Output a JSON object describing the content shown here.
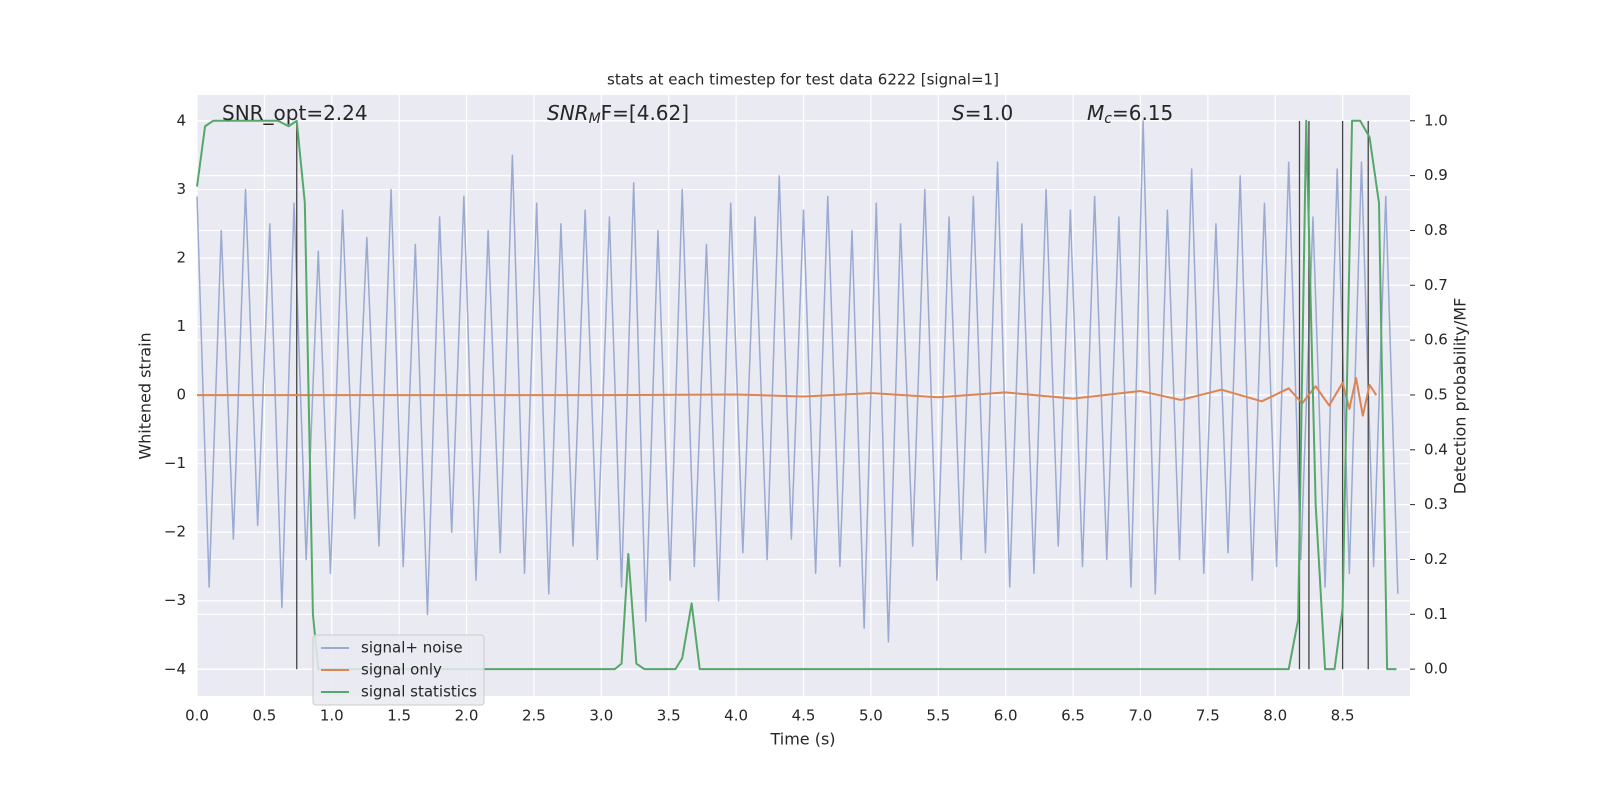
{
  "chart_data": {
    "type": "line",
    "title": "stats at each timestep for test data 6222 [signal=1]",
    "xlabel": "Time (s)",
    "ylabel": "Whitened strain",
    "y2label": "Detection probability/MF",
    "annotations": [
      {
        "text": "SNR_opt=2.24"
      },
      {
        "base": "SNR",
        "sub": "M",
        "tail": "F=[4.62]"
      },
      {
        "base": "S",
        "tail": "=1.0"
      },
      {
        "base": "M",
        "sub": "c",
        "tail": "=6.15"
      }
    ],
    "xlim": [
      0,
      9.0
    ],
    "ylim": [
      -4.39,
      4.38
    ],
    "y2lim": [
      -0.049,
      1.047
    ],
    "xticks": [
      {
        "value": 0,
        "label": "0.0"
      },
      {
        "value": 0.5,
        "label": "0.5"
      },
      {
        "value": 1,
        "label": "1.0"
      },
      {
        "value": 1.5,
        "label": "1.5"
      },
      {
        "value": 2,
        "label": "2.0"
      },
      {
        "value": 2.5,
        "label": "2.5"
      },
      {
        "value": 3,
        "label": "3.0"
      },
      {
        "value": 3.5,
        "label": "3.5"
      },
      {
        "value": 4,
        "label": "4.0"
      },
      {
        "value": 4.5,
        "label": "4.5"
      },
      {
        "value": 5,
        "label": "5.0"
      },
      {
        "value": 5.5,
        "label": "5.5"
      },
      {
        "value": 6,
        "label": "6.0"
      },
      {
        "value": 6.5,
        "label": "6.5"
      },
      {
        "value": 7,
        "label": "7.0"
      },
      {
        "value": 7.5,
        "label": "7.5"
      },
      {
        "value": 8,
        "label": "8.0"
      },
      {
        "value": 8.5,
        "label": "8.5"
      }
    ],
    "yticks": [
      {
        "value": -4,
        "label": "−4"
      },
      {
        "value": -3,
        "label": "−3"
      },
      {
        "value": -2,
        "label": "−2"
      },
      {
        "value": -1,
        "label": "−1"
      },
      0,
      1,
      2,
      3,
      4
    ],
    "y2ticks": [
      {
        "value": 0,
        "label": "0.0"
      },
      {
        "value": 0.1,
        "label": "0.1"
      },
      {
        "value": 0.2,
        "label": "0.2"
      },
      {
        "value": 0.3,
        "label": "0.3"
      },
      {
        "value": 0.4,
        "label": "0.4"
      },
      {
        "value": 0.5,
        "label": "0.5"
      },
      {
        "value": 0.6,
        "label": "0.6"
      },
      {
        "value": 0.7,
        "label": "0.7"
      },
      {
        "value": 0.8,
        "label": "0.8"
      },
      {
        "value": 0.9,
        "label": "0.9"
      },
      {
        "value": 1,
        "label": "1.0"
      }
    ],
    "grid": true,
    "legend": "lower left",
    "series": [
      {
        "name": "signal+ noise",
        "color": "#9aaad0",
        "x": [
          0,
          0.09,
          0.18,
          0.27,
          0.36,
          0.45,
          0.54,
          0.63,
          0.72,
          0.81,
          0.9,
          0.99,
          1.08,
          1.17,
          1.26,
          1.35,
          1.44,
          1.53,
          1.62,
          1.71,
          1.8,
          1.89,
          1.98,
          2.07,
          2.16,
          2.25,
          2.34,
          2.43,
          2.52,
          2.61,
          2.7,
          2.79,
          2.88,
          2.97,
          3.06,
          3.15,
          3.24,
          3.33,
          3.42,
          3.51,
          3.6,
          3.69,
          3.78,
          3.87,
          3.96,
          4.05,
          4.14,
          4.23,
          4.32,
          4.41,
          4.5,
          4.59,
          4.68,
          4.77,
          4.86,
          4.95,
          5.04,
          5.13,
          5.22,
          5.31,
          5.4,
          5.49,
          5.58,
          5.67,
          5.76,
          5.85,
          5.94,
          6.03,
          6.12,
          6.21,
          6.3,
          6.39,
          6.48,
          6.57,
          6.66,
          6.75,
          6.84,
          6.93,
          7.02,
          7.11,
          7.2,
          7.29,
          7.38,
          7.47,
          7.56,
          7.65,
          7.74,
          7.83,
          7.92,
          8.01,
          8.1,
          8.19,
          8.28,
          8.37,
          8.46,
          8.55,
          8.64,
          8.73,
          8.82,
          8.91
        ],
        "values": [
          2.9,
          -2.8,
          2.4,
          -2.1,
          3.0,
          -1.9,
          2.5,
          -3.1,
          2.8,
          -2.4,
          2.1,
          -2.6,
          2.7,
          -1.8,
          2.3,
          -2.2,
          3.0,
          -2.5,
          2.2,
          -3.2,
          2.6,
          -2.0,
          2.9,
          -2.7,
          2.4,
          -2.3,
          3.5,
          -2.6,
          2.8,
          -2.9,
          2.5,
          -2.2,
          2.7,
          -2.4,
          2.6,
          -2.8,
          3.1,
          -3.3,
          2.4,
          -2.7,
          3.0,
          -2.5,
          2.2,
          -3.0,
          2.8,
          -2.3,
          2.6,
          -2.4,
          3.2,
          -2.1,
          2.7,
          -2.6,
          2.9,
          -2.5,
          2.4,
          -3.4,
          2.8,
          -3.6,
          2.5,
          -2.2,
          3.0,
          -2.7,
          2.6,
          -2.4,
          2.9,
          -2.3,
          3.4,
          -2.8,
          2.5,
          -2.6,
          3.0,
          -2.2,
          2.7,
          -2.5,
          2.9,
          -2.4,
          2.6,
          -2.8,
          4.0,
          -2.9,
          2.7,
          -2.4,
          3.3,
          -2.6,
          2.5,
          -2.3,
          3.2,
          -2.7,
          2.8,
          -2.5,
          3.4,
          -2.4,
          2.6,
          -2.8,
          3.3,
          -2.6,
          3.4,
          -2.5,
          2.9,
          -2.9
        ]
      },
      {
        "name": "signal only",
        "color": "#dd8452",
        "x": [
          0,
          1,
          2,
          3,
          4,
          4.5,
          5,
          5.5,
          6,
          6.5,
          7,
          7.3,
          7.6,
          7.9,
          8.1,
          8.2,
          8.3,
          8.4,
          8.5,
          8.55,
          8.6,
          8.65,
          8.7,
          8.75
        ],
        "values": [
          0,
          0,
          0,
          0,
          0.01,
          -0.02,
          0.03,
          -0.03,
          0.04,
          -0.05,
          0.06,
          -0.07,
          0.08,
          -0.09,
          0.1,
          -0.12,
          0.13,
          -0.15,
          0.18,
          -0.2,
          0.25,
          -0.3,
          0.15,
          0
        ]
      },
      {
        "name": "signal statistics",
        "color": "#55a868",
        "axis": "y2",
        "x": [
          0,
          0.06,
          0.12,
          0.2,
          0.3,
          0.45,
          0.6,
          0.68,
          0.74,
          0.8,
          0.86,
          0.9,
          1.5,
          2.5,
          3.1,
          3.15,
          3.2,
          3.26,
          3.32,
          3.55,
          3.6,
          3.67,
          3.73,
          4.5,
          6.0,
          6.1,
          8.1,
          8.17,
          8.23,
          8.3,
          8.37,
          8.44,
          8.5,
          8.57,
          8.63,
          8.7,
          8.77,
          8.83,
          8.9
        ],
        "values": [
          0.88,
          0.99,
          1.0,
          1.0,
          1.0,
          1.0,
          1.0,
          0.99,
          1.0,
          0.85,
          0.1,
          0.0,
          0.0,
          0.0,
          0.0,
          0.01,
          0.21,
          0.01,
          0.0,
          0.0,
          0.02,
          0.12,
          0.0,
          0.0,
          0.0,
          0.0,
          0.0,
          0.09,
          1.0,
          0.3,
          0.0,
          0.0,
          0.11,
          1.0,
          1.0,
          0.97,
          0.85,
          0.0,
          0.0
        ]
      }
    ],
    "vlines": {
      "x": [
        0.74,
        8.18,
        8.25,
        8.5,
        8.69
      ],
      "ymin": -4,
      "ymax": 4,
      "color": "#444444"
    }
  }
}
